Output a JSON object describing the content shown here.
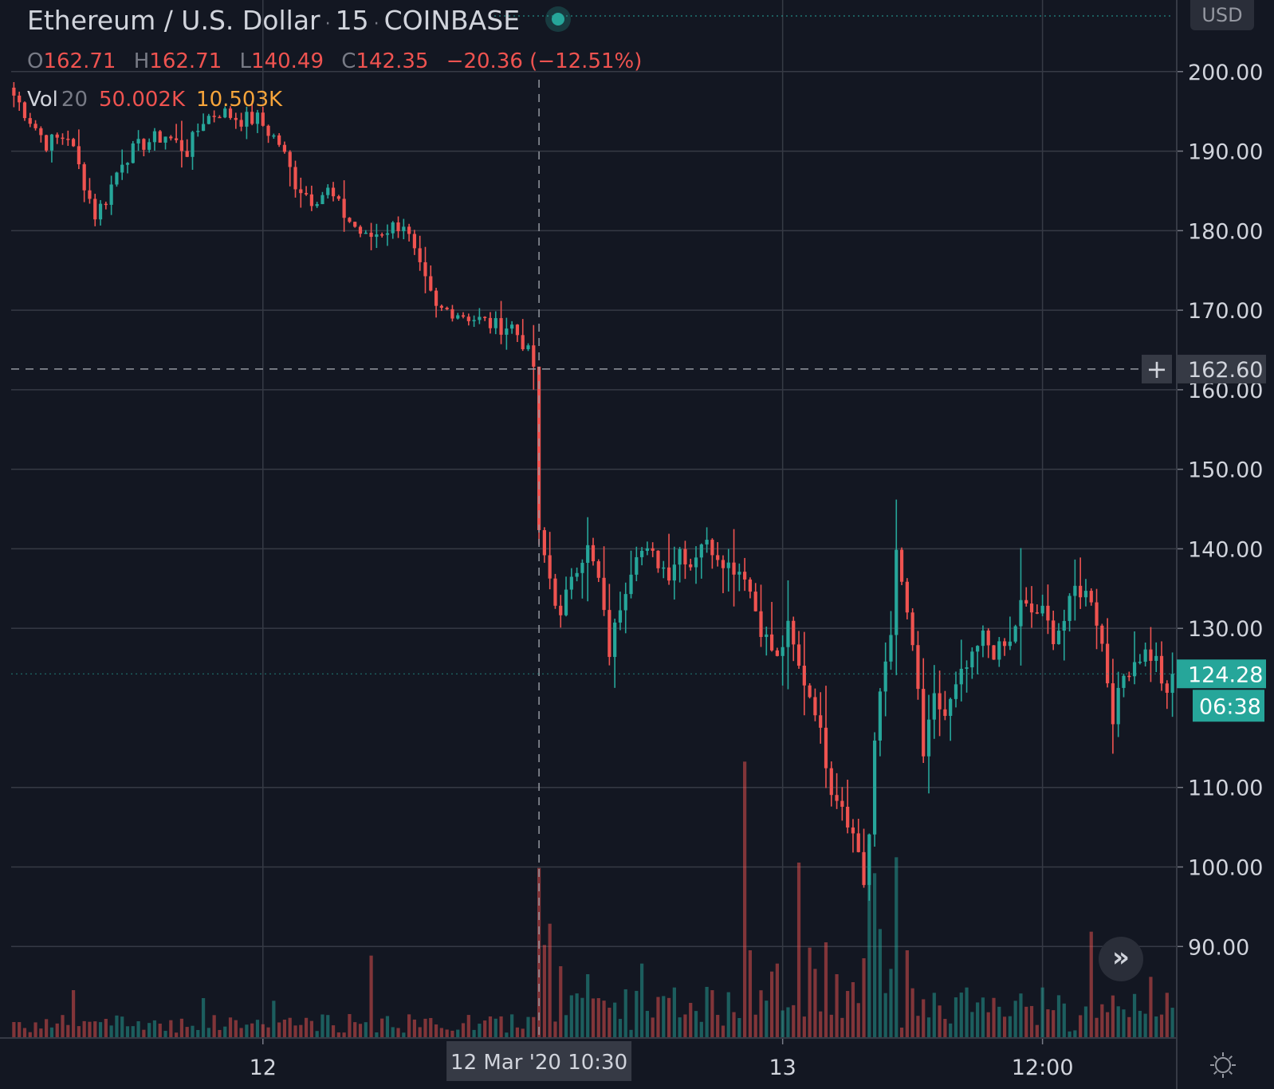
{
  "header": {
    "symbol": "Ethereum / U.S. Dollar",
    "interval": "15",
    "exchange": "COINBASE",
    "currency": "USD"
  },
  "ohlc": {
    "o_label": "O",
    "o_value": "162.71",
    "h_label": "H",
    "h_value": "162.71",
    "l_label": "L",
    "l_value": "140.49",
    "c_label": "C",
    "c_value": "142.35",
    "change": "−20.36 (−12.51%)"
  },
  "volume_legend": {
    "name": "Vol",
    "period": "20",
    "value": "50.002K",
    "ma_value": "10.503K"
  },
  "crosshair": {
    "price_label": "162.60",
    "price": 162.6,
    "time_label": "12 Mar '20   10:30"
  },
  "last_price": {
    "label": "124.28",
    "value": 124.28,
    "countdown": "06:38"
  },
  "colors": {
    "background": "#131722",
    "up": "#26a69a",
    "down": "#ef5350",
    "grid": "#363a45",
    "text": "#d1d4dc"
  },
  "icons": {
    "goto_realtime": "double-chevron-right-icon",
    "settings": "gear-icon",
    "crosshair_add": "plus-icon"
  },
  "chart_data": {
    "type": "candlestick",
    "title": "Ethereum / U.S. Dollar",
    "y_ticks": [
      "90.00",
      "100.00",
      "110.00",
      "130.00",
      "140.00",
      "150.00",
      "160.00",
      "170.00",
      "180.00",
      "190.00",
      "200.00"
    ],
    "y_min": 78.5,
    "y_max": 209,
    "x_ticks": [
      {
        "label": "12",
        "bar_index": 46
      },
      {
        "label": "13",
        "bar_index": 142
      },
      {
        "label": "12:00",
        "bar_index": 190
      }
    ],
    "grid": true,
    "price_path": [
      [
        0,
        197
      ],
      [
        3,
        194
      ],
      [
        6,
        191
      ],
      [
        10,
        192
      ],
      [
        13,
        186
      ],
      [
        15,
        182
      ],
      [
        17,
        184
      ],
      [
        20,
        189
      ],
      [
        24,
        191
      ],
      [
        28,
        192
      ],
      [
        32,
        190
      ],
      [
        35,
        194
      ],
      [
        38,
        195
      ],
      [
        42,
        194
      ],
      [
        45,
        194
      ],
      [
        49,
        191
      ],
      [
        52,
        186
      ],
      [
        55,
        184
      ],
      [
        58,
        185
      ],
      [
        61,
        182
      ],
      [
        65,
        179
      ],
      [
        68,
        180
      ],
      [
        72,
        181
      ],
      [
        75,
        175
      ],
      [
        78,
        170
      ],
      [
        81,
        170
      ],
      [
        85,
        169
      ],
      [
        89,
        168
      ],
      [
        92,
        168
      ],
      [
        94,
        166
      ],
      [
        96,
        163
      ],
      [
        97,
        142
      ],
      [
        98,
        139
      ],
      [
        101,
        131
      ],
      [
        103,
        137
      ],
      [
        106,
        140
      ],
      [
        108,
        136
      ],
      [
        110,
        127
      ],
      [
        112,
        133
      ],
      [
        115,
        140
      ],
      [
        118,
        139
      ],
      [
        121,
        137
      ],
      [
        123,
        140
      ],
      [
        125,
        138
      ],
      [
        127,
        141
      ],
      [
        129,
        140
      ],
      [
        132,
        138
      ],
      [
        135,
        137
      ],
      [
        138,
        130
      ],
      [
        141,
        126
      ],
      [
        143,
        130
      ],
      [
        145,
        125
      ],
      [
        148,
        120
      ],
      [
        151,
        110
      ],
      [
        153,
        108
      ],
      [
        155,
        104
      ],
      [
        156,
        102
      ],
      [
        157,
        98
      ],
      [
        158,
        104
      ],
      [
        159,
        115
      ],
      [
        160,
        122
      ],
      [
        162,
        130
      ],
      [
        163,
        139
      ],
      [
        165,
        132
      ],
      [
        167,
        122
      ],
      [
        168,
        114
      ],
      [
        170,
        121
      ],
      [
        172,
        119
      ],
      [
        175,
        124
      ],
      [
        177,
        126
      ],
      [
        179,
        129
      ],
      [
        181,
        127
      ],
      [
        184,
        128
      ],
      [
        186,
        133
      ],
      [
        188,
        132
      ],
      [
        190,
        132
      ],
      [
        192,
        129
      ],
      [
        194,
        131
      ],
      [
        196,
        135
      ],
      [
        199,
        134
      ],
      [
        201,
        128
      ],
      [
        203,
        119
      ],
      [
        205,
        124
      ],
      [
        207,
        126
      ],
      [
        209,
        127
      ],
      [
        211,
        126
      ],
      [
        213,
        121
      ],
      [
        214,
        124.28
      ]
    ],
    "volume_spikes": [
      [
        0,
        0.6
      ],
      [
        11,
        1.8
      ],
      [
        35,
        1.5
      ],
      [
        48,
        1.4
      ],
      [
        66,
        3.1
      ],
      [
        97,
        6.4
      ],
      [
        98,
        3.5
      ],
      [
        99,
        4.3
      ],
      [
        101,
        2.7
      ],
      [
        106,
        2.4
      ],
      [
        116,
        2.8
      ],
      [
        122,
        1.9
      ],
      [
        135,
        10.4
      ],
      [
        136,
        3.3
      ],
      [
        140,
        2.5
      ],
      [
        141,
        2.8
      ],
      [
        145,
        6.6
      ],
      [
        147,
        3.4
      ],
      [
        148,
        2.6
      ],
      [
        150,
        3.6
      ],
      [
        152,
        2.4
      ],
      [
        155,
        2.1
      ],
      [
        157,
        3.0
      ],
      [
        158,
        7.3
      ],
      [
        159,
        6.2
      ],
      [
        160,
        4.1
      ],
      [
        162,
        2.6
      ],
      [
        163,
        6.8
      ],
      [
        165,
        3.3
      ],
      [
        170,
        1.7
      ],
      [
        176,
        1.9
      ],
      [
        185,
        1.4
      ],
      [
        190,
        1.9
      ],
      [
        199,
        4.0
      ],
      [
        203,
        1.6
      ],
      [
        210,
        2.3
      ],
      [
        213,
        1.7
      ]
    ],
    "volume_unit": "K"
  }
}
